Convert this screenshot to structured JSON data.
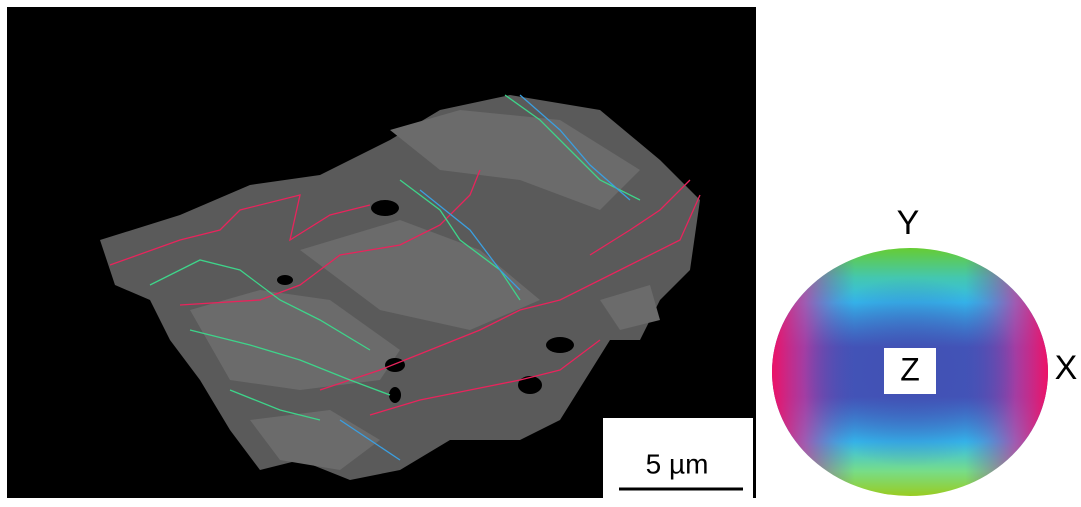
{
  "scale_bar": {
    "label": "5 µm"
  },
  "color_key": {
    "top": "Y",
    "right": "X",
    "center": "Z"
  }
}
